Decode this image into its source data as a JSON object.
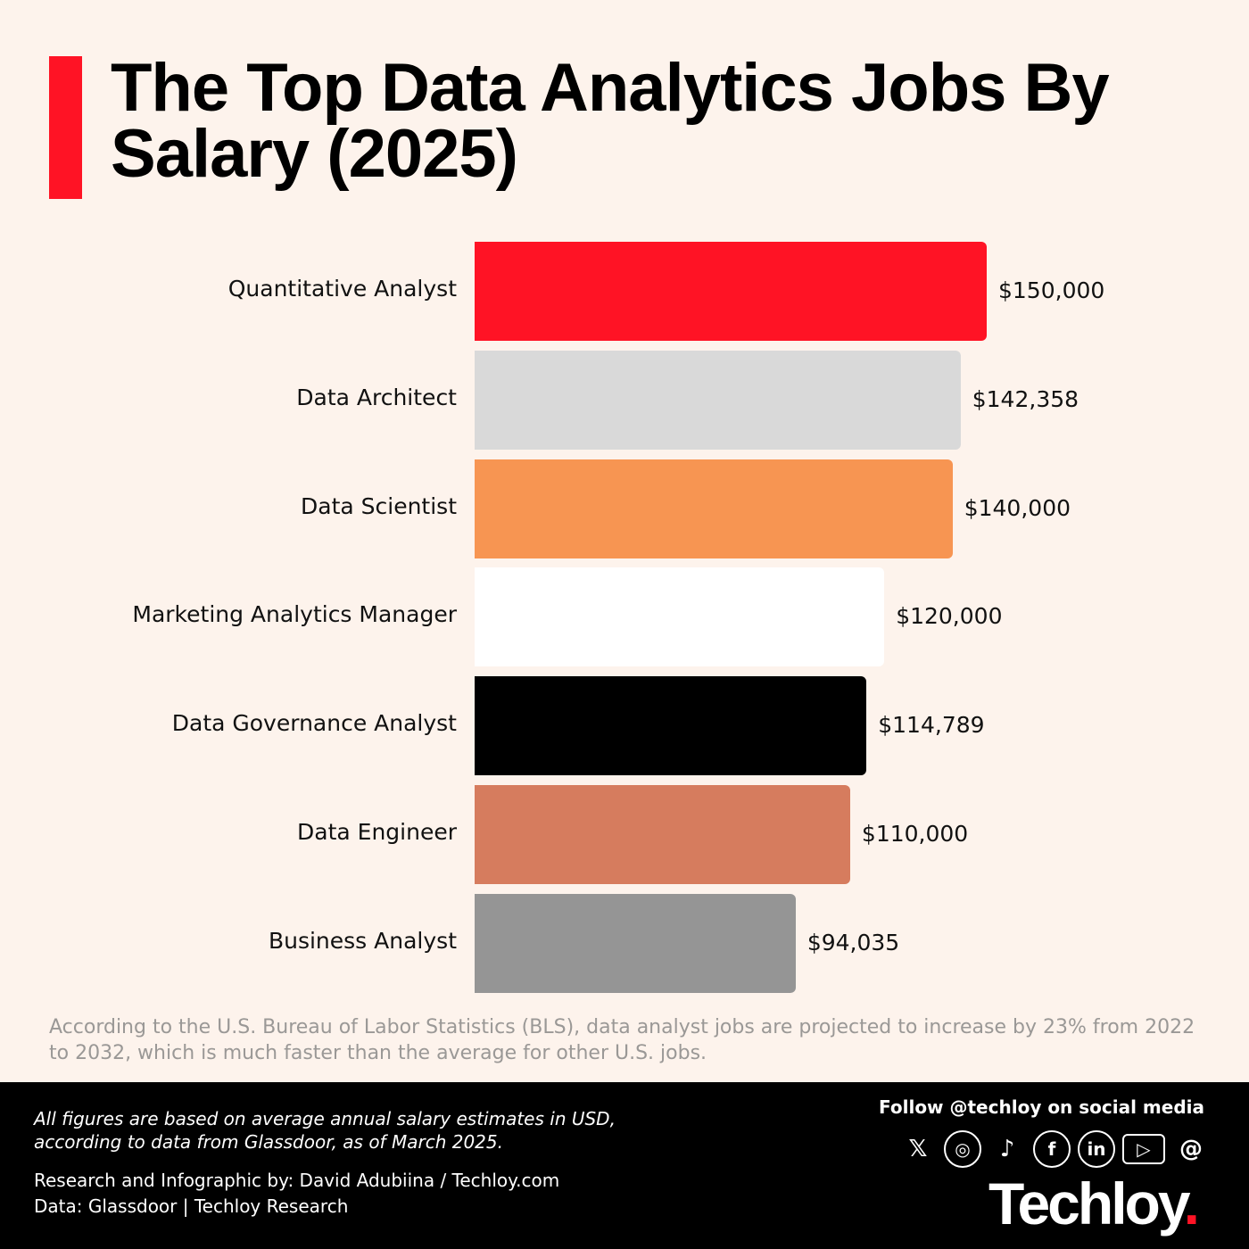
{
  "title": "The Top Data Analytics Jobs By Salary (2025)",
  "chart_data": {
    "type": "bar",
    "orientation": "horizontal",
    "title": "The Top Data Analytics Jobs By Salary (2025)",
    "categories": [
      "Quantitative Analyst",
      "Data Architect",
      "Data Scientist",
      "Marketing Analytics Manager",
      "Data Governance Analyst",
      "Data Engineer",
      "Business Analyst"
    ],
    "values": [
      150000,
      142358,
      140000,
      120000,
      114789,
      110000,
      94035
    ],
    "value_labels": [
      "$150,000",
      "$142,358",
      "$140,000",
      "$120,000",
      "$114,789",
      "$110,000",
      "$94,035"
    ],
    "colors": [
      "#ff1325",
      "#d9d9d9",
      "#f79552",
      "#ffffff",
      "#000000",
      "#d67c5e",
      "#959595"
    ],
    "xlim": [
      0,
      150000
    ],
    "grid": false,
    "xlabel": "",
    "ylabel": ""
  },
  "note": "According to the U.S. Bureau of Labor Statistics (BLS), data analyst jobs are projected to increase by 23% from 2022 to 2032, which is much faster than the average for other U.S. jobs.",
  "footer": {
    "disclaimer_1": "All figures are based on average annual salary estimates in USD,",
    "disclaimer_2": "according to data from Glassdoor, as of March 2025.",
    "credit": "Research and Infographic by: David Adubiina / Techloy.com",
    "data_source": "Data: Glassdoor | Techloy Research",
    "follow": "Follow @techloy on social media",
    "social_icons": [
      "x-icon",
      "instagram-icon",
      "tiktok-icon",
      "facebook-icon",
      "linkedin-icon",
      "youtube-icon",
      "threads-icon"
    ],
    "logo": "Techloy"
  }
}
